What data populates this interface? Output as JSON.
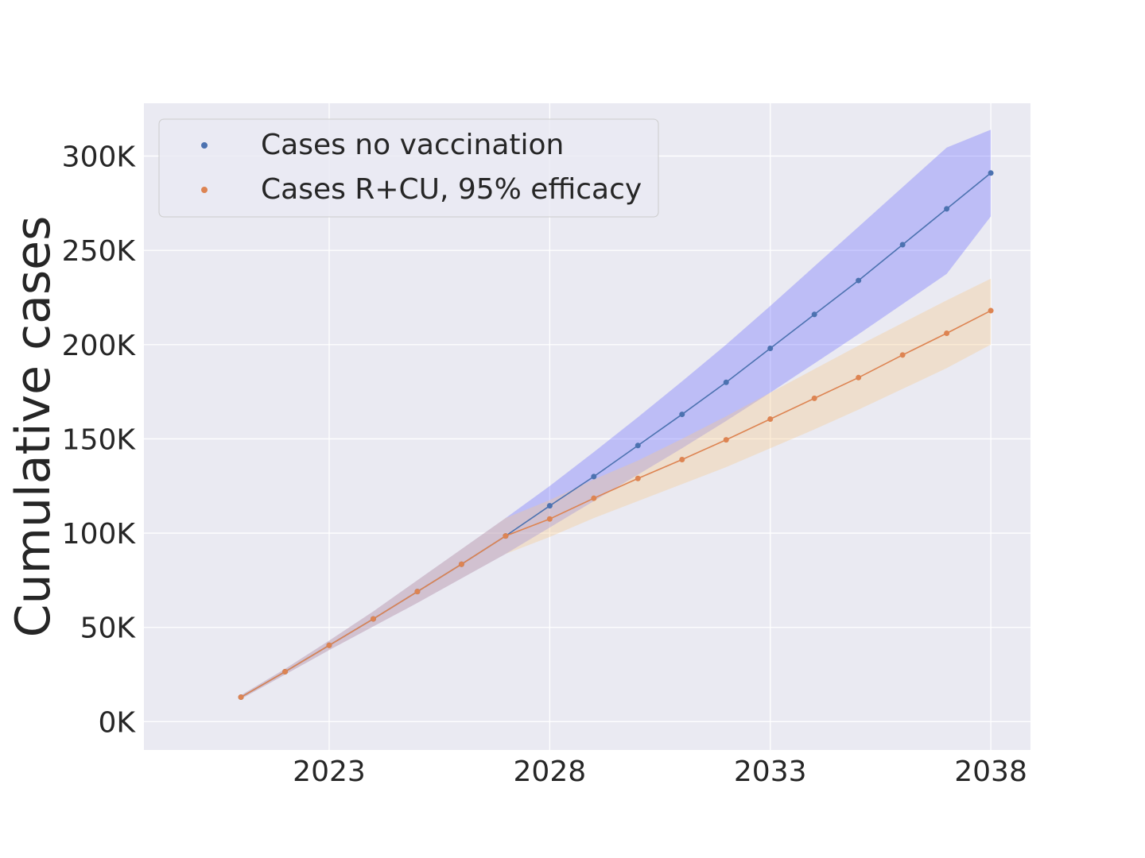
{
  "chart_data": {
    "type": "line",
    "title": "",
    "xlabel": "",
    "ylabel": "Cumulative cases",
    "x": [
      2021,
      2022,
      2023,
      2024,
      2025,
      2026,
      2027,
      2028,
      2029,
      2030,
      2031,
      2032,
      2033,
      2034,
      2035,
      2036,
      2037,
      2038
    ],
    "xlim": [
      2018.8,
      2038.9
    ],
    "ylim": [
      -15000,
      328000
    ],
    "xticks": [
      2023,
      2028,
      2033,
      2038
    ],
    "xtick_labels": [
      "2023",
      "2028",
      "2033",
      "2038"
    ],
    "yticks": [
      0,
      50000,
      100000,
      150000,
      200000,
      250000,
      300000
    ],
    "ytick_labels": [
      "0K",
      "50K",
      "100K",
      "150K",
      "200K",
      "250K",
      "300K"
    ],
    "grid": true,
    "legend_position": "top-left",
    "series": [
      {
        "name": "Cases no vaccination",
        "color": "#4c72b0",
        "band_color": "#6b6bff",
        "values": [
          13000,
          26500,
          40500,
          54500,
          69000,
          83500,
          98500,
          114500,
          130000,
          146500,
          163000,
          180000,
          198000,
          216000,
          234000,
          253000,
          272000,
          291000
        ],
        "lower": [
          12000,
          25000,
          38000,
          50500,
          63000,
          76000,
          89000,
          103000,
          117000,
          131000,
          145000,
          159500,
          174500,
          190000,
          205500,
          221500,
          237500,
          268000
        ],
        "upper": [
          14000,
          28000,
          43000,
          58500,
          75000,
          91500,
          108000,
          125000,
          143000,
          161500,
          180500,
          200000,
          220500,
          241500,
          262500,
          283500,
          304500,
          314000
        ]
      },
      {
        "name": "Cases R+CU, 95% efficacy",
        "color": "#dd8452",
        "band_color": "#f5c88a",
        "values": [
          13000,
          26500,
          40500,
          54500,
          69000,
          83500,
          98500,
          107500,
          118500,
          129000,
          139000,
          149500,
          160500,
          171500,
          182500,
          194500,
          206000,
          218000
        ],
        "lower": [
          12000,
          25000,
          38000,
          50500,
          63000,
          76000,
          89000,
          98000,
          108000,
          117000,
          126000,
          135000,
          145000,
          155000,
          165500,
          176500,
          187500,
          200000
        ],
        "upper": [
          14000,
          28000,
          43000,
          58500,
          75000,
          91500,
          108000,
          117500,
          128500,
          138500,
          150000,
          162000,
          174500,
          187000,
          199500,
          211500,
          223500,
          235000
        ]
      }
    ]
  }
}
